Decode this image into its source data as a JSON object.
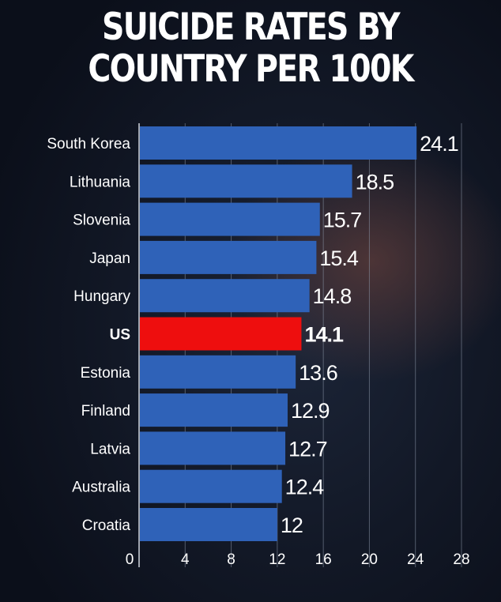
{
  "chart_data": {
    "type": "bar",
    "orientation": "horizontal",
    "title_lines": [
      "SUICIDE RATES BY",
      "COUNTRY PER 100K"
    ],
    "categories": [
      "South Korea",
      "Lithuania",
      "Slovenia",
      "Japan",
      "Hungary",
      "US",
      "Estonia",
      "Finland",
      "Latvia",
      "Australia",
      "Croatia"
    ],
    "values": [
      24.1,
      18.5,
      15.7,
      15.4,
      14.8,
      14.1,
      13.6,
      12.9,
      12.7,
      12.4,
      12
    ],
    "value_labels": [
      "24.1",
      "18.5",
      "15.7",
      "15.4",
      "14.8",
      "14.1",
      "13.6",
      "12.9",
      "12.7",
      "12.4",
      "12"
    ],
    "highlight_category": "US",
    "x_ticks": [
      0,
      4,
      8,
      12,
      16,
      20,
      24,
      28
    ],
    "xlim": [
      0,
      28
    ],
    "grid": true,
    "colors": {
      "bar": "#2f62b8",
      "highlight": "#ee0e0e",
      "text": "#ffffff",
      "grid": "#8a95a8"
    }
  }
}
